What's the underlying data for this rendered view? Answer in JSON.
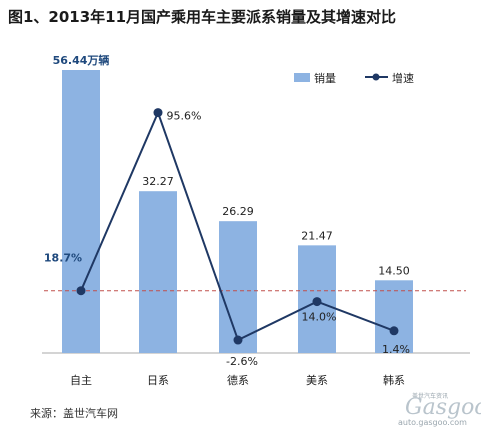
{
  "title": "图1、2013年11月国产乘用车主要派系销量及其增速对比",
  "source": "来源：盖世汽车网",
  "watermark": {
    "name": "Gasgoo",
    "tag": "盖世汽车资讯",
    "url": "auto.gasgoo.com"
  },
  "colors": {
    "bar": "#8db3e2",
    "line": "#1f3864",
    "reference": "#c0504d"
  },
  "chart_data": {
    "type": "bar",
    "categories": [
      "自主",
      "日系",
      "德系",
      "美系",
      "韩系"
    ],
    "series": [
      {
        "name": "销量",
        "type": "bar",
        "values": [
          56.44,
          32.27,
          26.29,
          21.47,
          14.5
        ],
        "labels": [
          "56.44万辆",
          "32.27",
          "26.29",
          "21.47",
          "14.50"
        ]
      },
      {
        "name": "增速",
        "type": "line",
        "values": [
          18.7,
          95.6,
          -2.6,
          14.0,
          1.4
        ],
        "labels": [
          "18.7%",
          "95.6%",
          "-2.6%",
          "14.0%",
          "1.4%"
        ]
      }
    ],
    "reference_line": 18.7,
    "legend": [
      "销量",
      "增速"
    ],
    "legend_position": "top-right"
  }
}
